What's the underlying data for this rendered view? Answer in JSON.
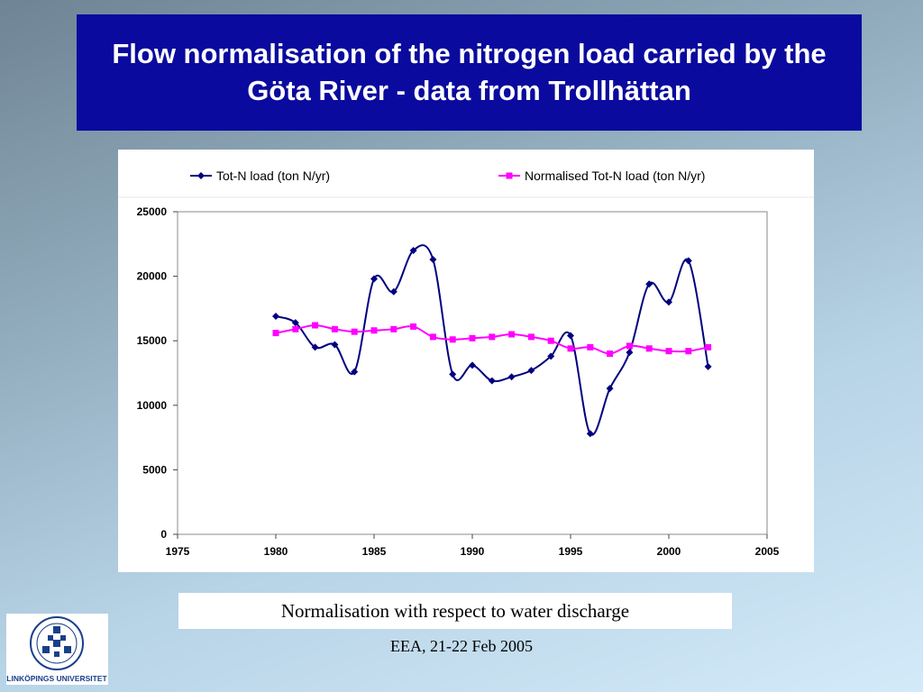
{
  "slide": {
    "title": "Flow normalisation of the nitrogen load carried by the Göta River - data from Trollhättan",
    "caption": "Normalisation with respect to water discharge",
    "footer": "EEA, 21-22 Feb 2005",
    "logo_text": "LINKÖPINGS UNIVERSITET"
  },
  "colors": {
    "title_bg": "#0a0a9e",
    "series_1": "#000080",
    "series_2": "#ff00ff"
  },
  "chart_data": {
    "type": "line",
    "title": "",
    "xlabel": "",
    "ylabel": "",
    "xlim": [
      1975,
      2005
    ],
    "ylim": [
      0,
      25000
    ],
    "x_ticks": [
      1975,
      1980,
      1985,
      1990,
      1995,
      2000,
      2005
    ],
    "y_ticks": [
      0,
      5000,
      10000,
      15000,
      20000,
      25000
    ],
    "legend_position": "top",
    "grid": false,
    "series": [
      {
        "name": "Tot-N load (ton N/yr)",
        "color": "#000080",
        "marker": "diamond",
        "smooth": true,
        "x": [
          1980,
          1981,
          1982,
          1983,
          1984,
          1985,
          1986,
          1987,
          1988,
          1989,
          1990,
          1991,
          1992,
          1993,
          1994,
          1995,
          1996,
          1997,
          1998,
          1999,
          2000,
          2001,
          2002
        ],
        "values": [
          16900,
          16400,
          14500,
          14700,
          12600,
          19800,
          18800,
          22000,
          21300,
          12400,
          13100,
          11900,
          12200,
          12700,
          13800,
          15400,
          7800,
          11300,
          14100,
          19400,
          18000,
          21200,
          13000
        ]
      },
      {
        "name": "Normalised Tot-N load (ton N/yr)",
        "color": "#ff00ff",
        "marker": "square",
        "smooth": true,
        "x": [
          1980,
          1981,
          1982,
          1983,
          1984,
          1985,
          1986,
          1987,
          1988,
          1989,
          1990,
          1991,
          1992,
          1993,
          1994,
          1995,
          1996,
          1997,
          1998,
          1999,
          2000,
          2001,
          2002
        ],
        "values": [
          15600,
          15900,
          16200,
          15900,
          15700,
          15800,
          15900,
          16100,
          15300,
          15100,
          15200,
          15300,
          15500,
          15300,
          15000,
          14400,
          14500,
          14000,
          14600,
          14400,
          14200,
          14200,
          14500
        ]
      }
    ]
  }
}
